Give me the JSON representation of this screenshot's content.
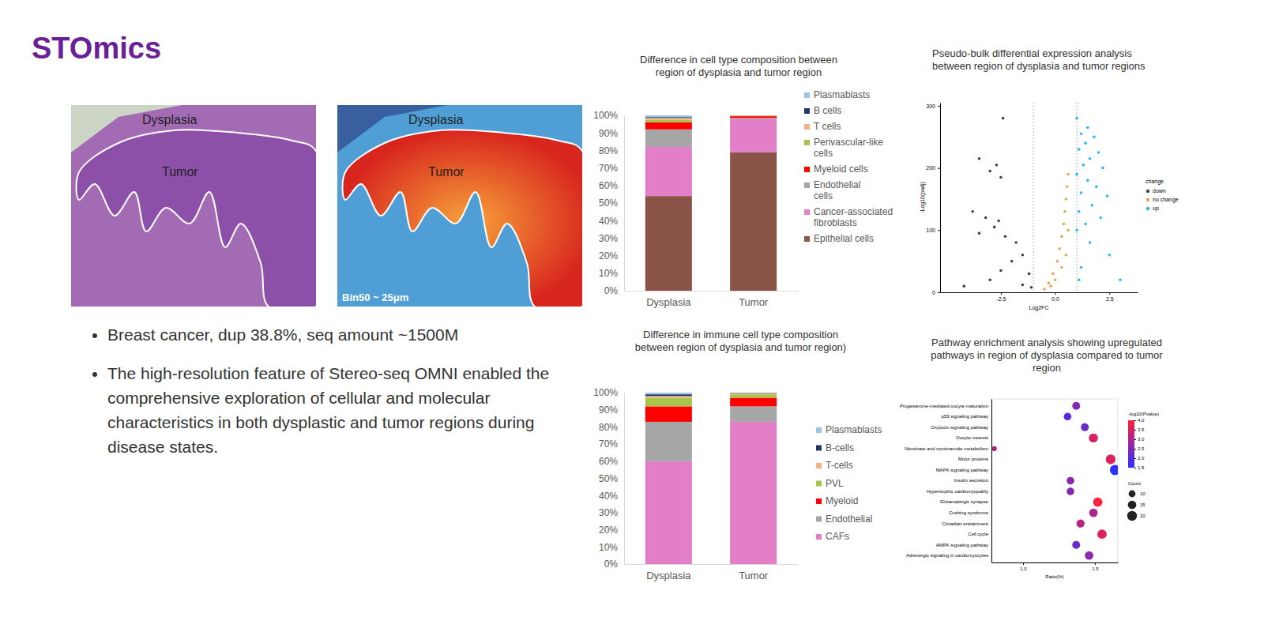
{
  "header": {
    "title": "STOmics"
  },
  "images": [
    {
      "labels": [
        "Dysplasia",
        "Tumor"
      ]
    },
    {
      "labels": [
        "Dysplasia",
        "Tumor"
      ],
      "caption": "Bin50 ~ 25μm"
    }
  ],
  "bullets": [
    "Breast cancer, dup 38.8%, seq amount ~1500M",
    "The high-resolution feature of Stereo-seq OMNI enabled the comprehensive exploration of cellular and molecular characteristics in both dysplastic and tumor regions during disease states."
  ],
  "chart_data": [
    {
      "type": "bar",
      "title": "Difference in cell type composition between region of dysplasia and tumor region",
      "stacked": true,
      "grid": false,
      "legend": "right",
      "categories": [
        "Dysplasia",
        "Tumor"
      ],
      "series": [
        {
          "name": "Epithelial cells",
          "color": "#8b5449",
          "values": [
            54,
            79
          ]
        },
        {
          "name": "Cancer-associated fibroblasts",
          "color": "#e27fc8",
          "values": [
            28,
            19
          ]
        },
        {
          "name": "Endothelial cells",
          "color": "#a6a6a6",
          "values": [
            10,
            0.5
          ]
        },
        {
          "name": "Myeloid cells",
          "color": "#ff0000",
          "values": [
            4,
            1
          ]
        },
        {
          "name": "Perivascular-like cells",
          "color": "#a9c44a",
          "values": [
            1.5,
            0.3
          ]
        },
        {
          "name": "T cells",
          "color": "#f4b183",
          "values": [
            1,
            0.1
          ]
        },
        {
          "name": "B cells",
          "color": "#1f3864",
          "values": [
            0.5,
            0.05
          ]
        },
        {
          "name": "Plasmablasts",
          "color": "#9dc3e6",
          "values": [
            1,
            0.05
          ]
        }
      ],
      "ylim": [
        0,
        100
      ],
      "yticks": [
        {
          "value": 0,
          "label": "0%"
        },
        {
          "value": 10,
          "label": "10%"
        },
        {
          "value": 20,
          "label": "20%"
        },
        {
          "value": 30,
          "label": "30%"
        },
        {
          "value": 40,
          "label": "40%"
        },
        {
          "value": 50,
          "label": "50%"
        },
        {
          "value": 60,
          "label": "60%"
        },
        {
          "value": 70,
          "label": "70%"
        },
        {
          "value": 80,
          "label": "80%"
        },
        {
          "value": 90,
          "label": "90%"
        },
        {
          "value": 100,
          "label": "100%"
        }
      ]
    },
    {
      "type": "bar",
      "title": "Difference in immune cell type composition between region of dysplasia and tumor region)",
      "stacked": true,
      "grid": false,
      "legend": "right",
      "categories": [
        "Dysplasia",
        "Tumor"
      ],
      "series": [
        {
          "name": "CAFs",
          "color": "#e27fc8",
          "values": [
            60,
            83
          ]
        },
        {
          "name": "Endothelial",
          "color": "#a6a6a6",
          "values": [
            23,
            9
          ]
        },
        {
          "name": "Myeloid",
          "color": "#ff0000",
          "values": [
            9,
            5
          ]
        },
        {
          "name": "PVL",
          "color": "#a9c44a",
          "values": [
            5,
            2
          ]
        },
        {
          "name": "T-cells",
          "color": "#f4b183",
          "values": [
            1,
            0.5
          ]
        },
        {
          "name": "B-cells",
          "color": "#1f3864",
          "values": [
            1,
            0.3
          ]
        },
        {
          "name": "Plasmablasts",
          "color": "#9dc3e6",
          "values": [
            1,
            0.2
          ]
        }
      ],
      "ylim": [
        0,
        100
      ],
      "yticks": [
        {
          "value": 0,
          "label": "0%"
        },
        {
          "value": 10,
          "label": "10%"
        },
        {
          "value": 20,
          "label": "20%"
        },
        {
          "value": 30,
          "label": "30%"
        },
        {
          "value": 40,
          "label": "40%"
        },
        {
          "value": 50,
          "label": "50%"
        },
        {
          "value": 60,
          "label": "60%"
        },
        {
          "value": 70,
          "label": "70%"
        },
        {
          "value": 80,
          "label": "80%"
        },
        {
          "value": 90,
          "label": "90%"
        },
        {
          "value": 100,
          "label": "100%"
        }
      ]
    },
    {
      "type": "scatter",
      "title": "Pseudo-bulk differential expression analysis between region of dysplasia and tumor regions",
      "x_label": "Log2FC",
      "y_label": "-Log10(padj)",
      "legend": "right",
      "legend_title": "change",
      "marker": "circle",
      "grid": false,
      "thresholds": [
        -1,
        1
      ],
      "series": [
        {
          "name": "down",
          "color": "#37474f",
          "x": [
            -2.4,
            -3.5,
            -2.7,
            -3.0,
            -2.5,
            -3.8,
            -3.2,
            -2.6,
            -2.8,
            -3.5,
            -2.3,
            -1.8,
            -1.5,
            -2.0,
            -1.2,
            -3.0,
            -4.2,
            -1.5,
            -2.5,
            -1.1
          ],
          "values": [
            280,
            215,
            205,
            195,
            185,
            130,
            120,
            115,
            105,
            95,
            90,
            80,
            60,
            50,
            30,
            20,
            10,
            12,
            35,
            8
          ]
        },
        {
          "name": "no change",
          "color": "#f0a050",
          "x": [
            -0.5,
            -0.3,
            -0.1,
            0.1,
            0.2,
            0.3,
            0.4,
            0.45,
            0.5,
            0.55,
            0.6,
            0.3,
            -0.2,
            0.0,
            0.5,
            0.6
          ],
          "values": [
            5,
            15,
            30,
            50,
            70,
            90,
            110,
            130,
            150,
            170,
            190,
            40,
            10,
            20,
            60,
            100
          ]
        },
        {
          "name": "up",
          "color": "#29b6f6",
          "x": [
            1.0,
            1.5,
            1.2,
            1.8,
            1.4,
            1.1,
            2.0,
            1.6,
            1.3,
            2.2,
            1.0,
            1.5,
            1.9,
            1.2,
            2.4,
            1.7,
            1.1,
            2.1,
            1.4,
            1.0,
            1.6,
            2.5,
            1.2,
            3.0,
            1.1
          ],
          "values": [
            280,
            265,
            255,
            250,
            240,
            230,
            225,
            215,
            205,
            200,
            190,
            180,
            170,
            160,
            155,
            140,
            130,
            120,
            110,
            100,
            80,
            60,
            40,
            20,
            20
          ]
        }
      ],
      "xlim": [
        -5.3,
        3.8
      ],
      "xticks": [
        -2.5,
        {
          "value": 0,
          "label": "0.0"
        },
        2.5
      ],
      "ylim": [
        0,
        305
      ],
      "yticks": [
        0,
        100,
        200,
        300
      ]
    },
    {
      "type": "dot",
      "title": "Pathway enrichment analysis showing upregulated pathways in region of dysplasia compared to tumor region",
      "orientation": "horizontal",
      "x_label": "Ratio(%)",
      "grid": false,
      "categories": [
        "Progesterone-mediated oocyte maturation",
        "p53 signaling pathway",
        "Oxytocin signaling pathway",
        "Oocyte meiosis",
        "Nicotinate and nicotinamide metabolism",
        "Motor proteins",
        "MAPK signaling pathway",
        "Insulin secretion",
        "Hypertrophic cardiomyopathy",
        "Glutamatergic synapse",
        "Cushing syndrome",
        "Circadian entrainment",
        "Cell cycle",
        "AMPK signaling pathway",
        "Adrenergic signaling in cardiomyocytes"
      ],
      "values": [
        1.37,
        1.31,
        1.43,
        1.49,
        0.8,
        1.61,
        1.64,
        1.33,
        1.33,
        1.52,
        1.49,
        1.4,
        1.55,
        1.37,
        1.46
      ],
      "sizes": [
        13,
        12,
        13,
        17,
        5,
        20,
        22,
        12,
        12,
        18,
        15,
        14,
        18,
        13,
        15
      ],
      "color_values": [
        2.5,
        2.0,
        2.2,
        3.5,
        3.0,
        3.6,
        1.5,
        2.6,
        2.5,
        4.0,
        3.0,
        3.1,
        3.6,
        2.2,
        2.6
      ],
      "xlim": [
        0.78,
        1.66
      ],
      "xticks": [
        {
          "value": 1.0,
          "label": "1.0"
        },
        1.5
      ],
      "colorbar": {
        "title": "-log10(Pvalue)",
        "range": [
          1.5,
          4.0
        ],
        "ticks": [
          {
            "value": 4.0,
            "label": "4.0"
          },
          3.5,
          {
            "value": 3.0,
            "label": "3.0"
          },
          2.5,
          {
            "value": 2.0,
            "label": "2.0"
          },
          1.5
        ]
      },
      "size_legend": {
        "title": "Count",
        "values": [
          10,
          15,
          20
        ]
      }
    }
  ]
}
